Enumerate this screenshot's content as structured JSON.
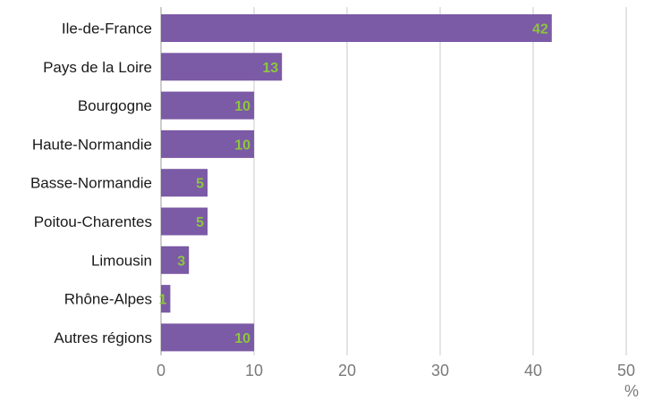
{
  "chart_data": {
    "type": "bar",
    "orientation": "horizontal",
    "categories": [
      "Ile-de-France",
      "Pays de la Loire",
      "Bourgogne",
      "Haute-Normandie",
      "Basse-Normandie",
      "Poitou-Charentes",
      "Limousin",
      "Rhône-Alpes",
      "Autres régions"
    ],
    "values": [
      42,
      13,
      10,
      10,
      5,
      5,
      3,
      1,
      10
    ],
    "data_labels": [
      "42",
      "13",
      "10",
      "10",
      "5",
      "5",
      "3",
      "1",
      "10"
    ],
    "xlim": [
      0,
      50
    ],
    "xticks": [
      "0",
      "10",
      "20",
      "30",
      "40",
      "50"
    ],
    "xunit": "%",
    "grid": "vertical",
    "legend": "none",
    "colors": {
      "bar": "#7b5aa6",
      "data_label": "#8dc63f",
      "grid": "#c8c8c8",
      "tick_label": "#7a7a7a"
    }
  }
}
